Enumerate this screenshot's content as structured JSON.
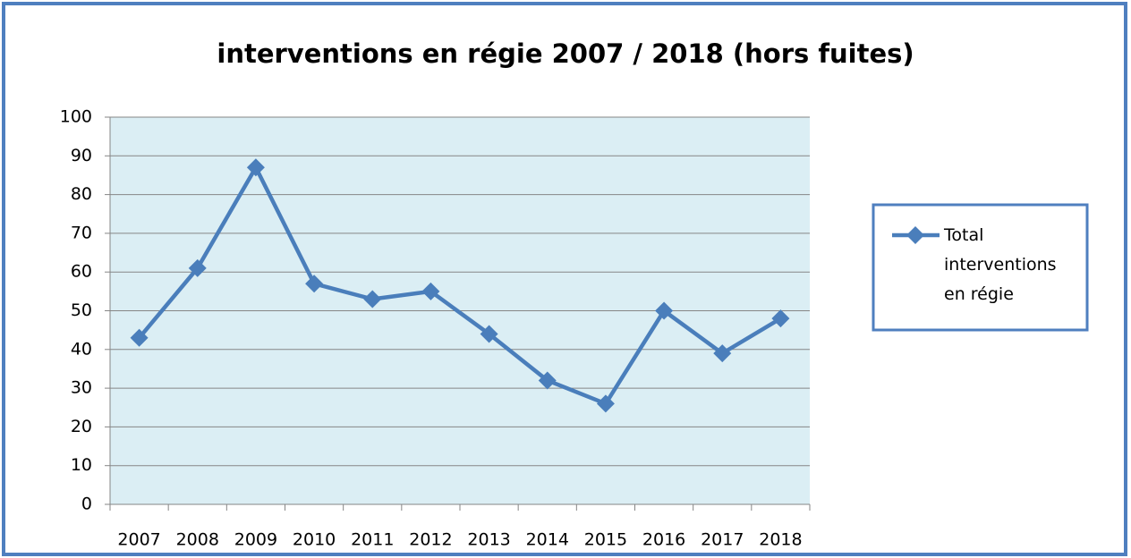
{
  "chart_data": {
    "type": "line",
    "title": "interventions en régie 2007 / 2018 (hors fuites)",
    "categories": [
      "2007",
      "2008",
      "2009",
      "2010",
      "2011",
      "2012",
      "2013",
      "2014",
      "2015",
      "2016",
      "2017",
      "2018"
    ],
    "series": [
      {
        "name": "Total interventions en régie",
        "color": "#4a7ebb",
        "values": [
          43,
          61,
          87,
          57,
          53,
          55,
          44,
          32,
          26,
          50,
          39,
          48
        ]
      }
    ],
    "ylim": [
      0,
      100
    ],
    "yticks": [
      0,
      10,
      20,
      30,
      40,
      50,
      60,
      70,
      80,
      90,
      100
    ],
    "grid": true,
    "legend": "right"
  }
}
